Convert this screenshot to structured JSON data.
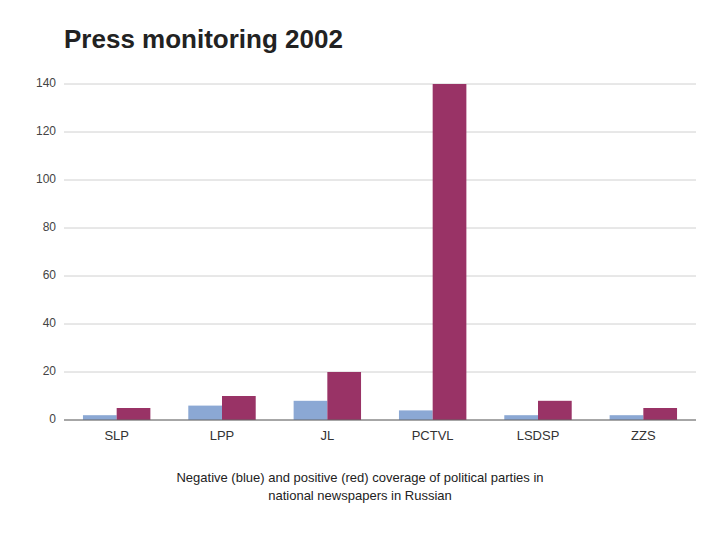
{
  "chart_data": {
    "type": "bar",
    "title": "Press monitoring 2002",
    "subtitle": "Negative (blue) and positive (red) coverage of political parties in\nnational newspapers in Russian",
    "categories": [
      "SLP",
      "LPP",
      "JL",
      "PCTVL",
      "LSDSP",
      "ZZS"
    ],
    "series": [
      {
        "color": "#8BA8D4",
        "values": [
          2,
          6,
          8,
          4,
          2,
          2
        ]
      },
      {
        "color": "#993366",
        "values": [
          5,
          10,
          20,
          140,
          8,
          5
        ]
      }
    ],
    "ylim": [
      0,
      140
    ],
    "yticks": [
      0,
      20,
      40,
      60,
      80,
      100,
      120,
      140
    ],
    "grid": true
  }
}
